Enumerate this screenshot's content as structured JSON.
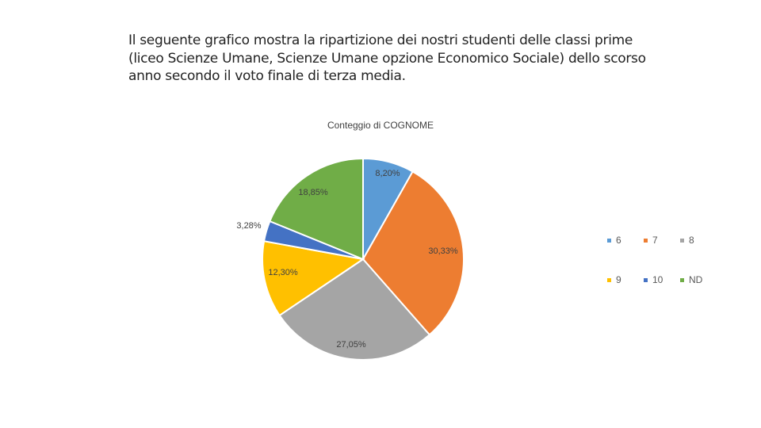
{
  "intro_text": "Il seguente grafico mostra la ripartizione dei nostri studenti delle classi prime\n(liceo Scienze Umane, Scienze Umane opzione Economico Sociale) dello scorso\nanno secondo il voto finale di terza media.",
  "chart_data": {
    "type": "pie",
    "title": "Conteggio di COGNOME",
    "categories": [
      "6",
      "7",
      "8",
      "9",
      "10",
      "ND"
    ],
    "values": [
      8.2,
      30.33,
      27.05,
      12.3,
      3.28,
      18.85
    ],
    "labels": [
      "8,20%",
      "30,33%",
      "27,05%",
      "12,30%",
      "3,28%",
      "18,85%"
    ],
    "colors": [
      "#5B9BD5",
      "#ED7D31",
      "#A5A5A5",
      "#FFC000",
      "#4472C4",
      "#70AD47"
    ],
    "start_angle": "12 o'clock",
    "direction": "clockwise",
    "legend_position": "right"
  }
}
